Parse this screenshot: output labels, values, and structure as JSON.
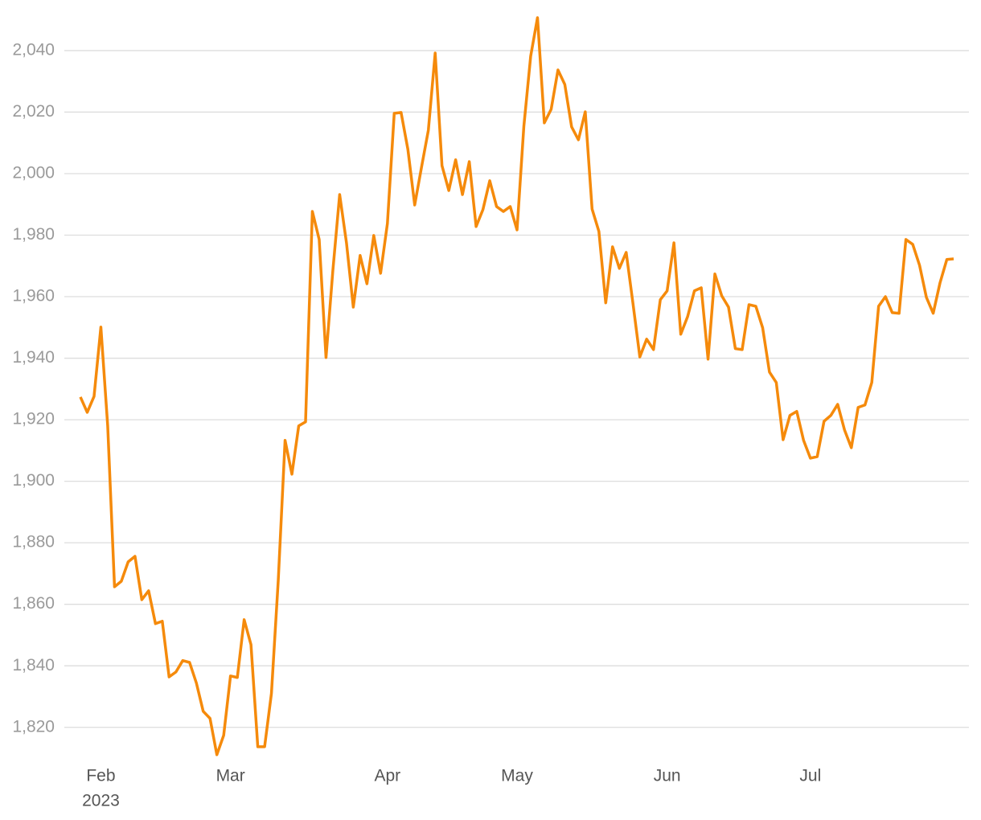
{
  "chart_data": {
    "type": "line",
    "categories": [
      null,
      null,
      null,
      "Feb",
      null,
      null,
      null,
      null,
      null,
      null,
      null,
      null,
      null,
      null,
      null,
      null,
      null,
      null,
      null,
      null,
      null,
      null,
      "Mar",
      null,
      null,
      null,
      null,
      null,
      null,
      null,
      null,
      null,
      null,
      null,
      null,
      null,
      null,
      null,
      null,
      null,
      null,
      null,
      null,
      null,
      null,
      "Apr",
      null,
      null,
      null,
      null,
      null,
      null,
      null,
      null,
      null,
      null,
      null,
      null,
      null,
      null,
      null,
      null,
      null,
      null,
      "May",
      null,
      null,
      null,
      null,
      null,
      null,
      null,
      null,
      null,
      null,
      null,
      null,
      null,
      null,
      null,
      null,
      null,
      null,
      null,
      null,
      null,
      "Jun",
      null,
      null,
      null,
      null,
      null,
      null,
      null,
      null,
      null,
      null,
      null,
      null,
      null,
      null,
      null,
      null,
      null,
      null,
      null,
      null,
      "Jul",
      null,
      null,
      null,
      null,
      null,
      null,
      null,
      null,
      null,
      null,
      null,
      null,
      null,
      null,
      null,
      null,
      null,
      null,
      null,
      null,
      null
    ],
    "x_year": "2023",
    "values": [
      1927.4,
      1922.4,
      1927.6,
      1950.1,
      1918,
      1865.7,
      1867.5,
      1873.8,
      1875.6,
      1861.5,
      1864.4,
      1853.7,
      1854.5,
      1836.4,
      1838,
      1841.7,
      1841.1,
      1834.4,
      1825.2,
      1822.9,
      1811.1,
      1817.4,
      1836.7,
      1836.2,
      1855,
      1846.9,
      1813.7,
      1813.7,
      1831,
      1867.8,
      1913.3,
      1902.3,
      1918,
      1919.3,
      1987.7,
      1978.6,
      1940.2,
      1968.4,
      1993.2,
      1977.5,
      1956.6,
      1973.4,
      1964.2,
      1979.9,
      1967.6,
      1983.8,
      2019.6,
      2019.9,
      2007.9,
      1989.8,
      2002.1,
      2014.1,
      2039.2,
      2002.6,
      1994.5,
      2004.5,
      1993.2,
      2003.9,
      1982.8,
      1988.3,
      1997.7,
      1989.3,
      1987.7,
      1989.3,
      1981.7,
      2015.4,
      2038.2,
      2050.7,
      2016.5,
      2020.9,
      2033.7,
      2029,
      2015.2,
      2011,
      2020.1,
      1988.5,
      1981.2,
      1958,
      1976.2,
      1969.2,
      1974.4,
      1957.7,
      1940.4,
      1946.2,
      1942.8,
      1959,
      1961.9,
      1977.5,
      1947.8,
      1953.5,
      1961.9,
      1962.9,
      1939.7,
      1967.4,
      1960.3,
      1956.6,
      1943.1,
      1942.8,
      1957.4,
      1956.9,
      1949.9,
      1935.5,
      1932.1,
      1913.5,
      1921.4,
      1922.7,
      1913.3,
      1907.5,
      1908,
      1919.5,
      1921.4,
      1925,
      1916.7,
      1910.9,
      1924,
      1924.8,
      1932.1,
      1956.9,
      1960,
      1954.8,
      1954.6,
      1978.6,
      1977,
      1970.2,
      1959.8,
      1954.6,
      1964.5,
      1972.1,
      1972.3
    ],
    "color": "#f58a0b",
    "ylim": [
      1810,
      2052
    ],
    "yticks": [
      {
        "value": 1820,
        "label": "1,820"
      },
      {
        "value": 1840,
        "label": "1,840"
      },
      {
        "value": 1860,
        "label": "1,860"
      },
      {
        "value": 1880,
        "label": "1,880"
      },
      {
        "value": 1900,
        "label": "1,900"
      },
      {
        "value": 1920,
        "label": "1,920"
      },
      {
        "value": 1940,
        "label": "1,940"
      },
      {
        "value": 1960,
        "label": "1,960"
      },
      {
        "value": 1980,
        "label": "1,980"
      },
      {
        "value": 2000,
        "label": "2,000"
      },
      {
        "value": 2020,
        "label": "2,020"
      },
      {
        "value": 2040,
        "label": "2,040"
      }
    ],
    "grid": true
  }
}
